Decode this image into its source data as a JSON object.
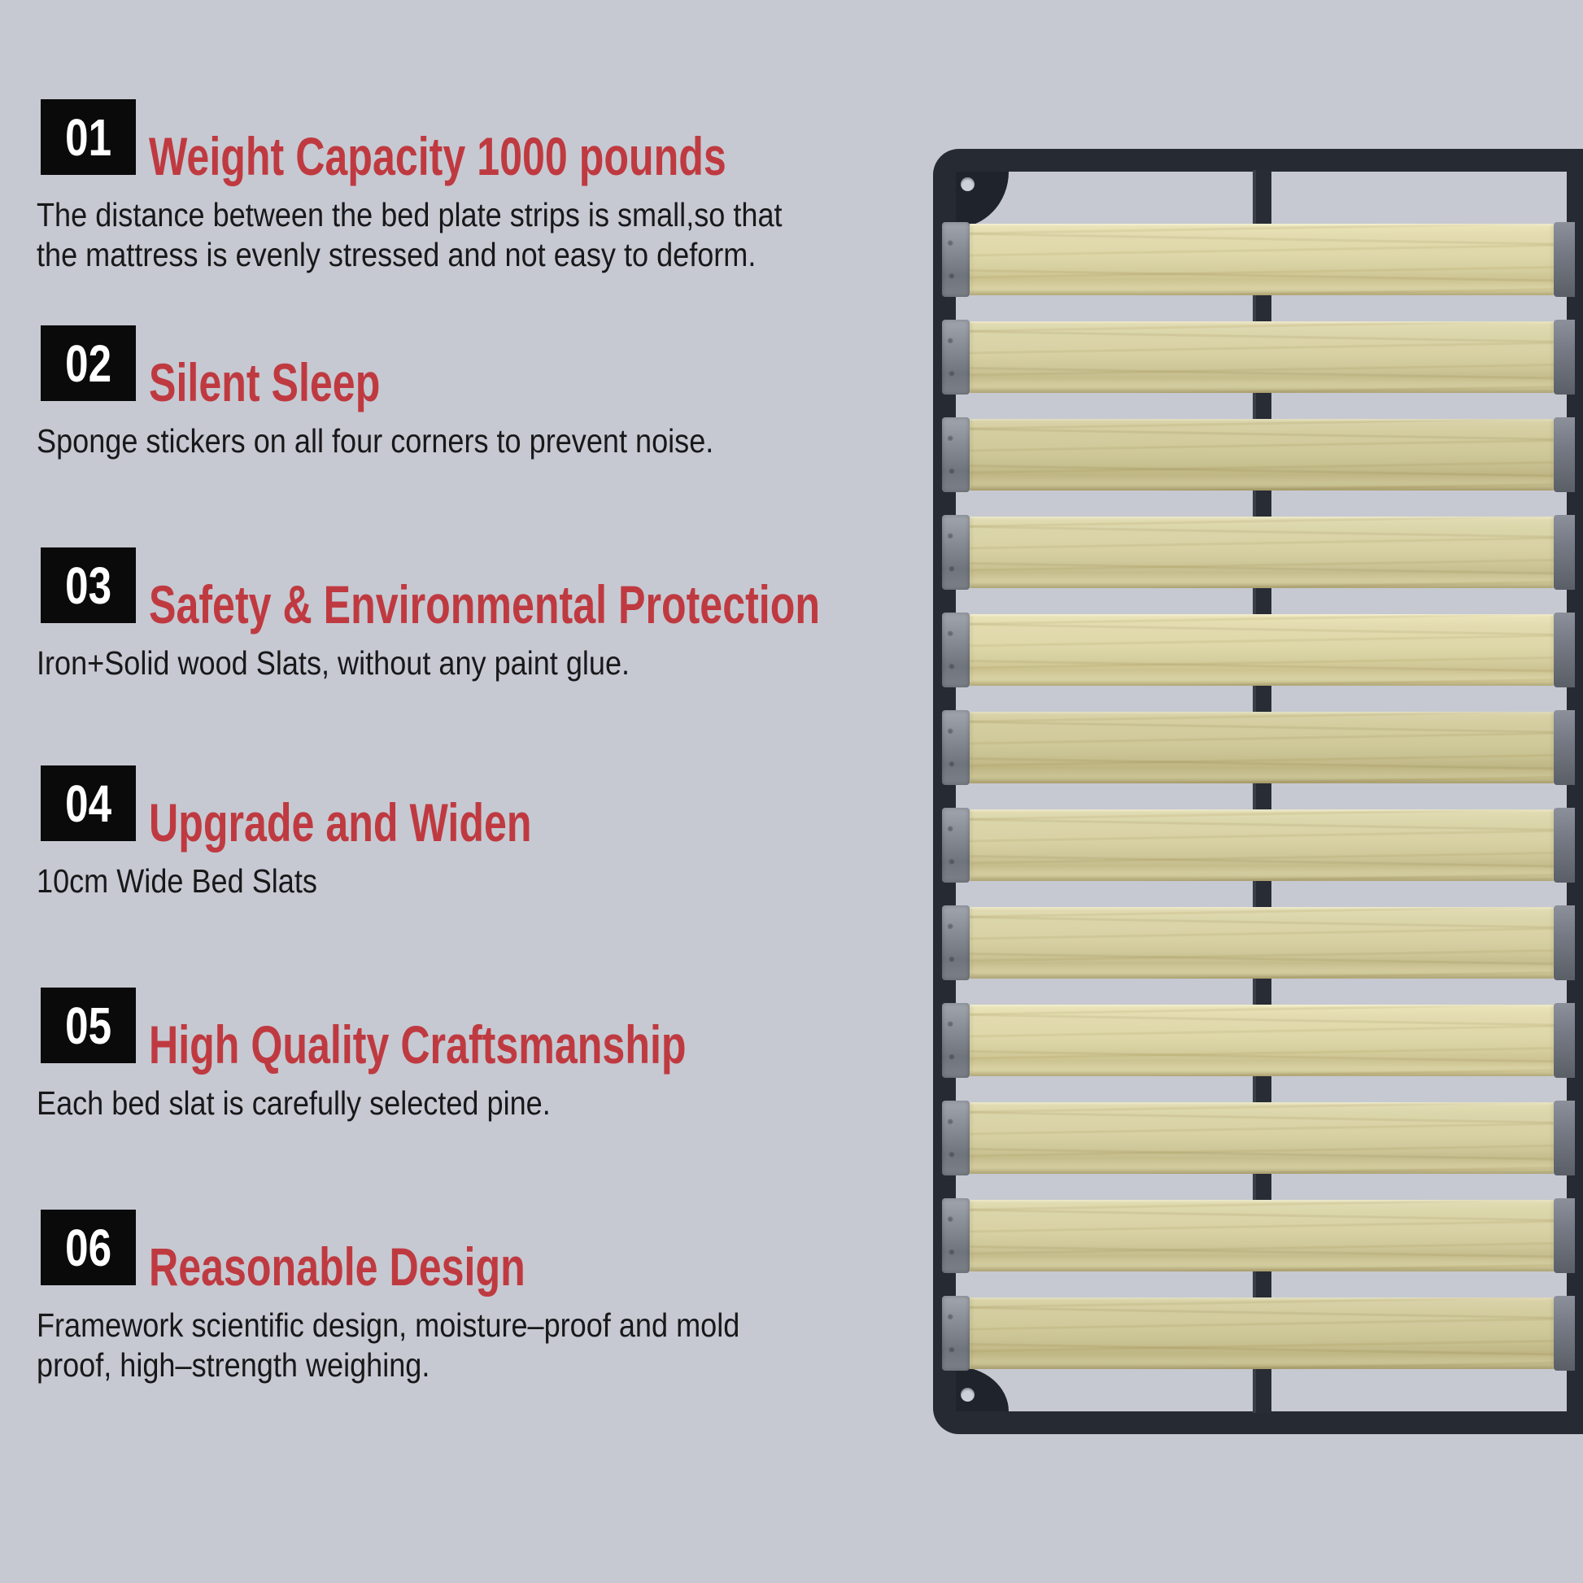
{
  "colors": {
    "background": "#c6c9d2",
    "accent_red": "#bf3a40",
    "badge_black": "#0a0a0b",
    "frame_dark": "#262a33",
    "wood_pine": "#d8d2a6",
    "bracket_gray": "#82868f"
  },
  "features": [
    {
      "number": "01",
      "title": "Weight Capacity 1000 pounds",
      "description": "The distance between the bed plate strips is small,so that\nthe mattress is evenly stressed and not easy to deform."
    },
    {
      "number": "02",
      "title": "Silent Sleep",
      "description": "Sponge stickers on all four corners to prevent noise."
    },
    {
      "number": "03",
      "title": "Safety & Environmental Protection",
      "description": "Iron+Solid wood Slats, without any paint glue."
    },
    {
      "number": "04",
      "title": "Upgrade and Widen",
      "description": "10cm Wide Bed Slats"
    },
    {
      "number": "05",
      "title": "High Quality Craftsmanship",
      "description": "Each bed slat is carefully selected pine."
    },
    {
      "number": "06",
      "title": "Reasonable Design",
      "description": "Framework scientific design, moisture–proof and mold\nproof, high–strength weighing."
    }
  ],
  "illustration": {
    "name": "slatted-bed-base",
    "slat_count": 12
  }
}
